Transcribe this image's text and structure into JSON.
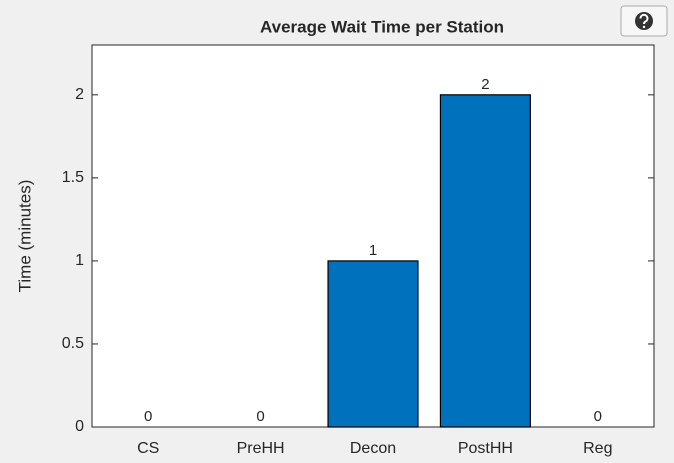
{
  "chart_data": {
    "type": "bar",
    "title": "Average Wait Time per Station",
    "ylabel": "Time (minutes)",
    "categories": [
      "CS",
      "PreHH",
      "Decon",
      "PostHH",
      "Reg"
    ],
    "values": [
      0,
      0,
      1,
      2,
      0
    ],
    "color": "#0072bd",
    "ylim": [
      0,
      2.3
    ],
    "yticks": [
      0,
      0.5,
      1,
      1.5,
      2
    ],
    "grid": false
  }
}
